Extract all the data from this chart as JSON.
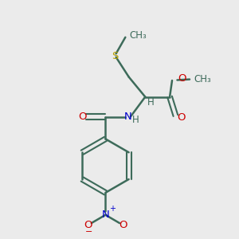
{
  "background_color": "#ebebeb",
  "bond_color": "#3d6b5a",
  "atom_colors": {
    "S": "#b8a000",
    "O": "#cc0000",
    "N": "#0000cc",
    "C": "#3d6b5a",
    "H": "#3d6b5a"
  },
  "figsize": [
    3.0,
    3.0
  ],
  "dpi": 100
}
